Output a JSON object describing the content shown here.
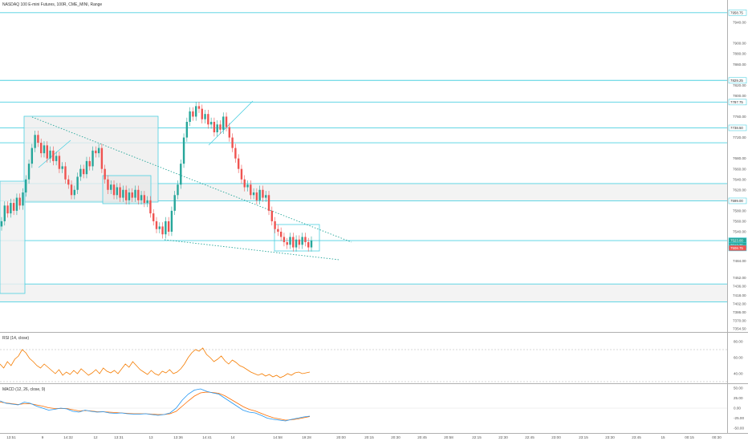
{
  "header": {
    "symbol_title": "NASDAQ 100 E-mini Futures, 100R, CME_MINI, Range"
  },
  "colors": {
    "up": "#26a69a",
    "down": "#ef5350",
    "zone_line": "#4dd0e1",
    "zone_fill": "#eeeeee",
    "rsi": "#f57c00",
    "macd": "#2196f3",
    "signal": "#ff6d00"
  },
  "chart_data": {
    "type": "candlestick",
    "title": "NASDAQ 100 E-mini Futures, 100R, CME_MINI, Range",
    "price_axis": {
      "ticks": [
        7940,
        7900,
        7880,
        7860,
        7820,
        7800,
        7760,
        7740,
        7720,
        7680,
        7660,
        7640,
        7620,
        7580,
        7560,
        7540,
        7520,
        7484,
        7452,
        7436,
        7418,
        7402,
        7386,
        7370,
        7354.5
      ],
      "range": [
        7350,
        7960
      ]
    },
    "price_tags": [
      {
        "label": "7958.75",
        "value": 7958.75,
        "kind": "level"
      },
      {
        "label": "7829.25",
        "value": 7829.25,
        "kind": "level"
      },
      {
        "label": "7787.75",
        "value": 7787.75,
        "kind": "level"
      },
      {
        "label": "7738.50",
        "value": 7738.5,
        "kind": "level"
      },
      {
        "label": "7599.00",
        "value": 7599,
        "kind": "level"
      },
      {
        "label": "7523.00",
        "value": 7523,
        "kind": "close"
      },
      {
        "label": "7513.75",
        "value": 7513.75,
        "kind": "close"
      },
      {
        "label": "7508.75",
        "value": 7508.75,
        "kind": "low"
      }
    ],
    "time_axis": [
      "13:51",
      "9",
      "14:32",
      "12",
      "13:31",
      "13",
      "13:36",
      "14:41",
      "14",
      "14:58",
      "19:28",
      "20:00",
      "20:15",
      "20:30",
      "20:45",
      "20:58",
      "22:15",
      "22:30",
      "22:45",
      "23:00",
      "23:15",
      "23:30",
      "23:45",
      "15",
      "00:15",
      "00:30"
    ],
    "levels": [
      7958.75,
      7829.25,
      7787.75,
      7738.5,
      7710,
      7632,
      7599,
      7523,
      7440,
      7406
    ],
    "zones": [
      [
        7599,
        7632
      ],
      [
        7406,
        7440
      ]
    ],
    "candles_close": [
      7560,
      7590,
      7575,
      7595,
      7580,
      7605,
      7590,
      7615,
      7640,
      7670,
      7700,
      7725,
      7710,
      7690,
      7705,
      7680,
      7695,
      7675,
      7685,
      7660,
      7665,
      7640,
      7630,
      7610,
      7620,
      7645,
      7660,
      7650,
      7675,
      7665,
      7695,
      7690,
      7700,
      7660,
      7640,
      7620,
      7630,
      7610,
      7625,
      7605,
      7620,
      7600,
      7615,
      7605,
      7620,
      7600,
      7610,
      7595,
      7600,
      7575,
      7560,
      7545,
      7550,
      7535,
      7560,
      7540,
      7580,
      7610,
      7630,
      7670,
      7720,
      7750,
      7770,
      7760,
      7780,
      7775,
      7755,
      7765,
      7745,
      7750,
      7730,
      7745,
      7735,
      7760,
      7740,
      7720,
      7700,
      7680,
      7660,
      7640,
      7625,
      7630,
      7610,
      7615,
      7600,
      7620,
      7605,
      7610,
      7580,
      7560,
      7545,
      7540,
      7530,
      7520,
      7515,
      7530,
      7510,
      7525,
      7515,
      7530,
      7520,
      7510,
      7523
    ],
    "rsi": {
      "title": "RSI (14, close)",
      "ticks": [
        80,
        60,
        40
      ],
      "levels": [
        70,
        30
      ],
      "values": [
        52,
        47,
        55,
        50,
        58,
        62,
        70,
        66,
        59,
        55,
        50,
        47,
        52,
        48,
        44,
        40,
        45,
        38,
        42,
        39,
        44,
        40,
        46,
        42,
        38,
        41,
        45,
        40,
        47,
        43,
        41,
        44,
        40,
        46,
        52,
        48,
        55,
        50,
        45,
        42,
        39,
        44,
        40,
        38,
        43,
        41,
        45,
        40,
        42,
        46,
        52,
        60,
        66,
        70,
        68,
        72,
        64,
        60,
        55,
        58,
        62,
        56,
        52,
        57,
        54,
        50,
        48,
        45,
        42,
        40,
        38,
        40,
        37,
        39,
        36,
        38,
        35,
        37,
        40,
        38,
        41,
        42,
        40,
        41,
        42
      ]
    },
    "macd": {
      "title": "MACD (12, 26, close, 9)",
      "ticks": [
        50,
        25,
        0,
        -25,
        -50
      ],
      "macd": [
        18,
        12,
        10,
        8,
        15,
        12,
        5,
        0,
        -5,
        -3,
        0,
        -2,
        -8,
        -10,
        -5,
        -8,
        -10,
        -9,
        -12,
        -13,
        -12,
        -14,
        -15,
        -15,
        -14,
        -16,
        -18,
        -16,
        -12,
        0,
        20,
        35,
        45,
        48,
        42,
        38,
        35,
        25,
        15,
        5,
        -5,
        -10,
        -12,
        -18,
        -25,
        -28,
        -30,
        -32,
        -28,
        -25,
        -22,
        -20
      ],
      "signal": [
        15,
        13,
        11,
        9,
        11,
        11,
        8,
        5,
        1,
        -1,
        -1,
        -1,
        -4,
        -7,
        -6,
        -7,
        -9,
        -9,
        -10,
        -11,
        -12,
        -13,
        -14,
        -14,
        -14,
        -15,
        -16,
        -16,
        -14,
        -8,
        5,
        18,
        30,
        38,
        40,
        39,
        37,
        31,
        22,
        13,
        4,
        -3,
        -7,
        -13,
        -19,
        -24,
        -27,
        -30,
        -29,
        -27,
        -24,
        -21
      ]
    }
  }
}
